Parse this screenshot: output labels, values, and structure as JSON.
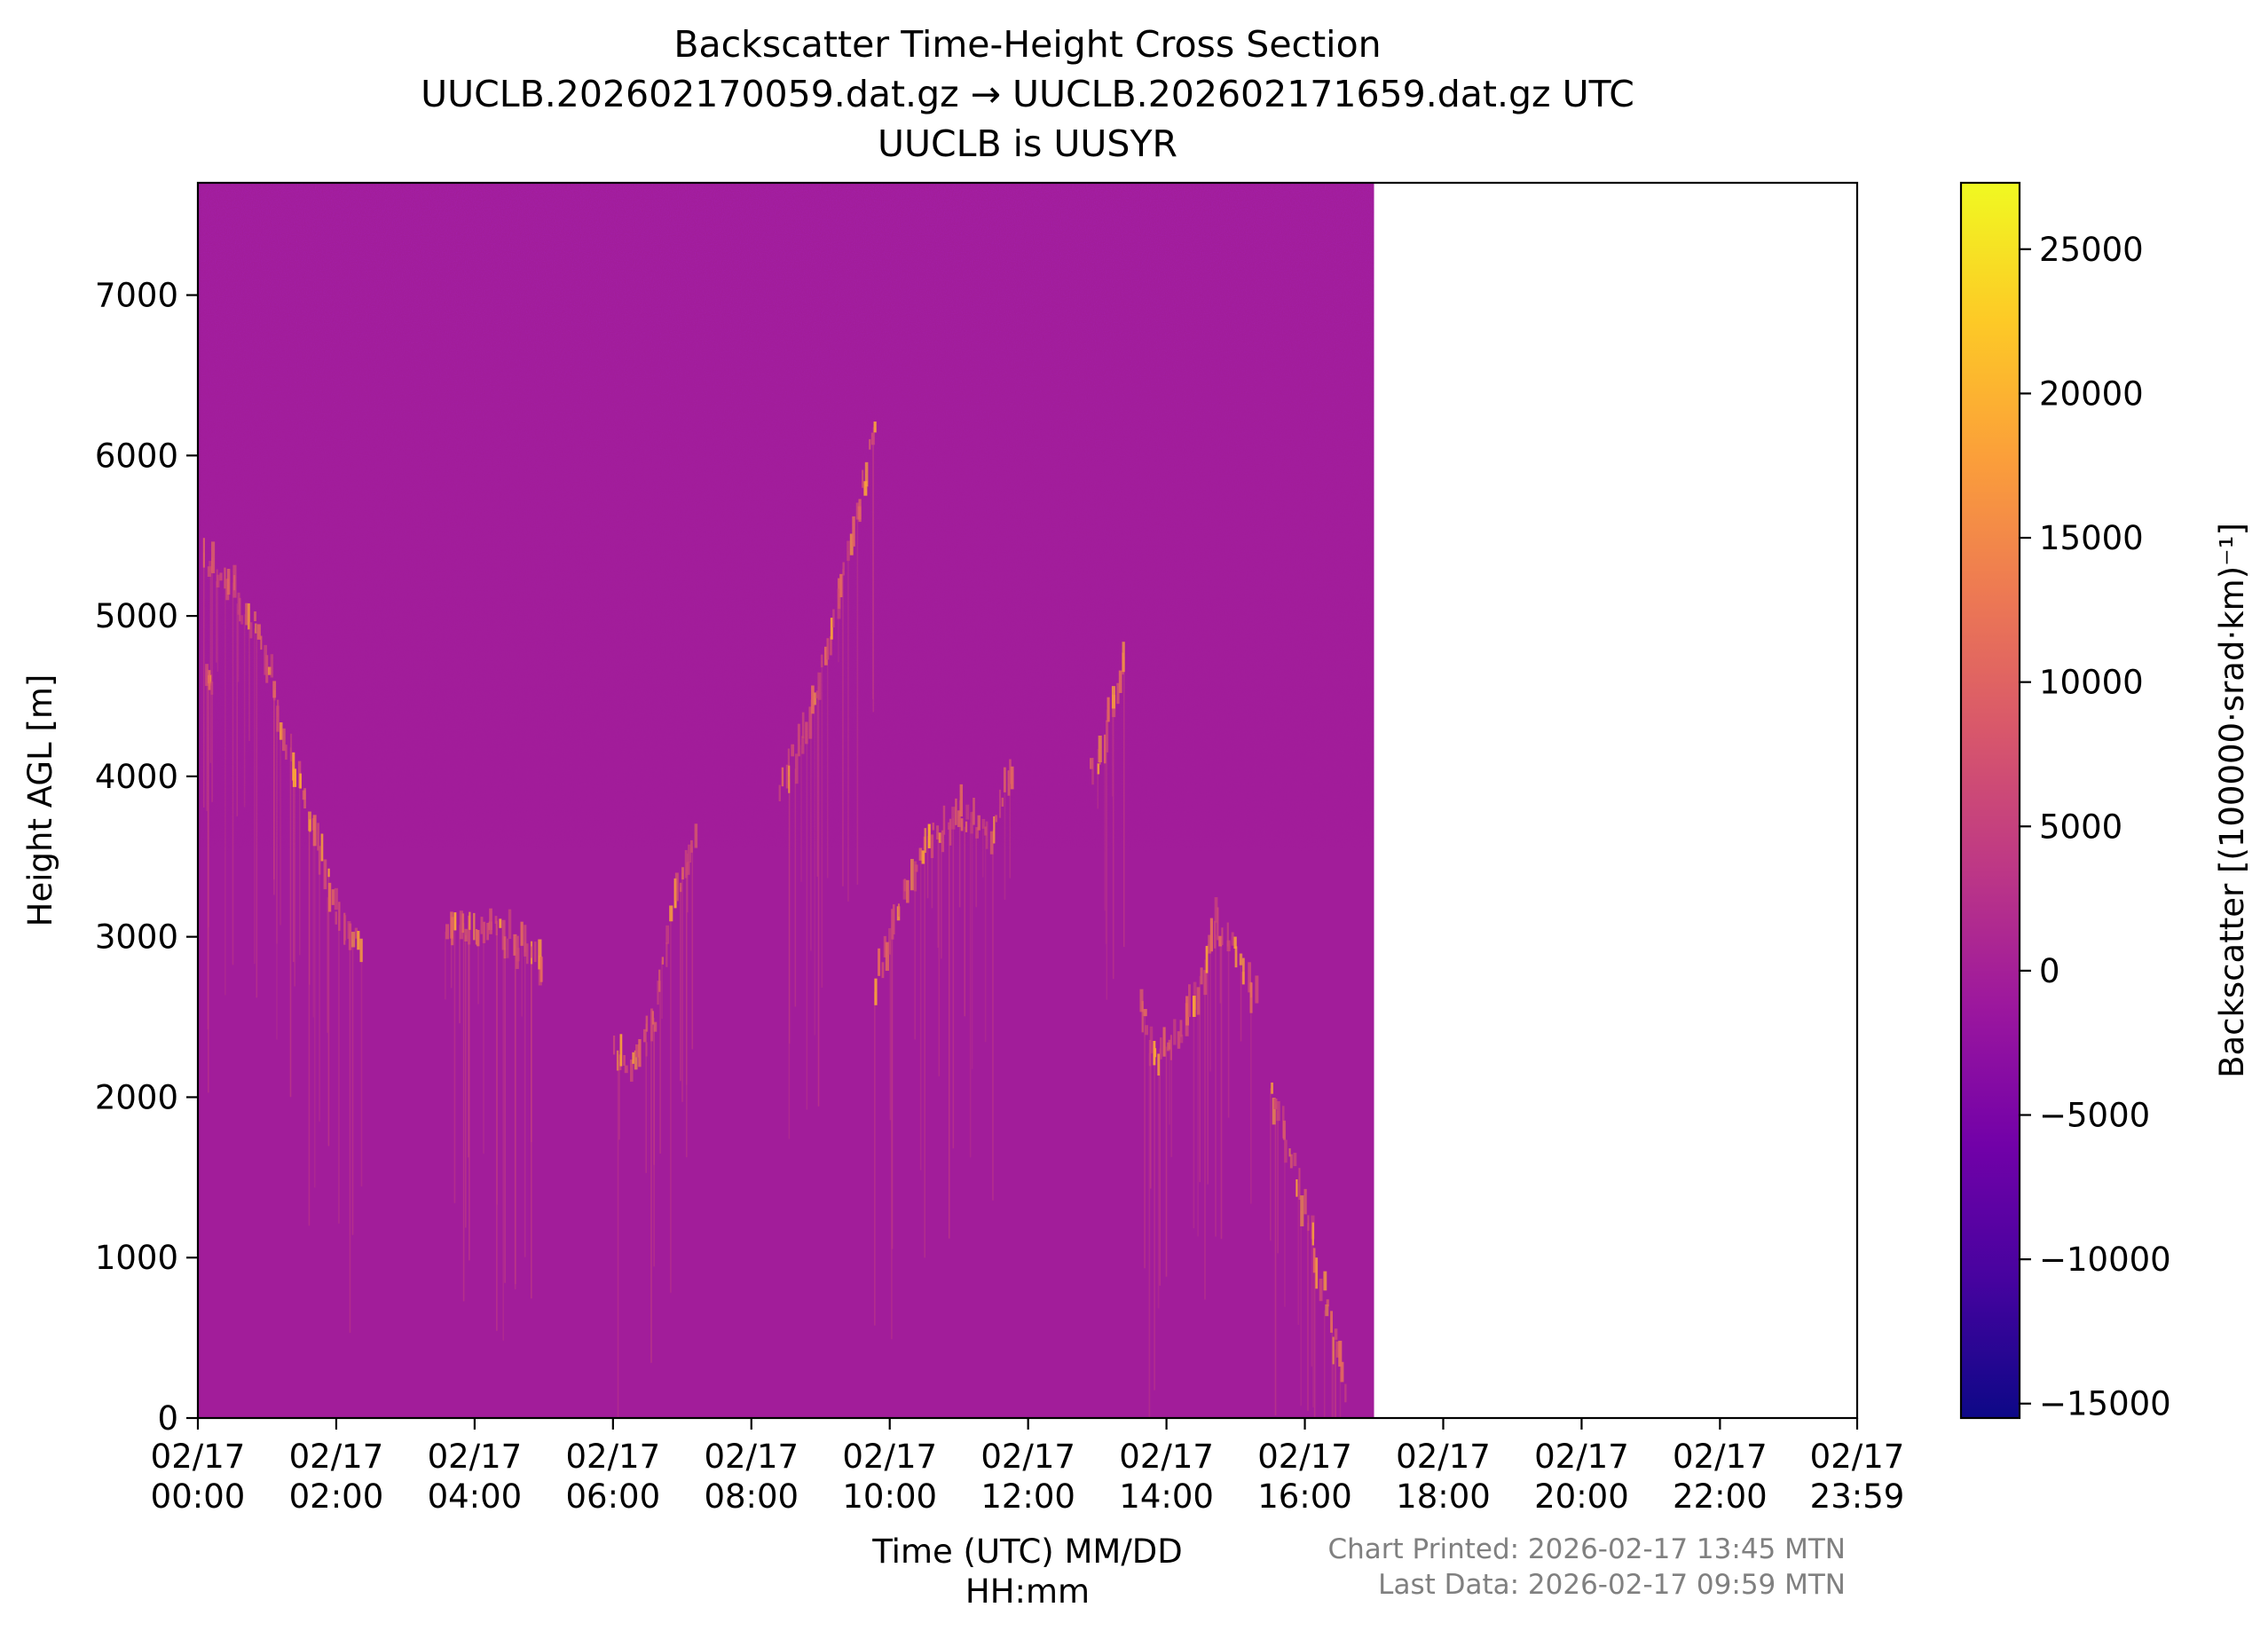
{
  "chart_data": {
    "type": "heatmap",
    "title_lines": [
      "Backscatter Time-Height Cross Section",
      "UUCLB.202602170059.dat.gz → UUCLB.202602171659.dat.gz UTC",
      "UUCLB is UUSYR"
    ],
    "xlabel_lines": [
      "Time (UTC) MM/DD",
      "HH:mm"
    ],
    "ylabel": "Height AGL [m]",
    "colorbar_label": "Backscatter [(100000·srad·km)⁻¹]",
    "x_range_hours": [
      0,
      23.983
    ],
    "data_end_hour": 17.0,
    "y_range_m": [
      0,
      7700
    ],
    "x_ticks": [
      {
        "hour": 0,
        "date": "02/17",
        "time": "00:00"
      },
      {
        "hour": 2,
        "date": "02/17",
        "time": "02:00"
      },
      {
        "hour": 4,
        "date": "02/17",
        "time": "04:00"
      },
      {
        "hour": 6,
        "date": "02/17",
        "time": "06:00"
      },
      {
        "hour": 8,
        "date": "02/17",
        "time": "08:00"
      },
      {
        "hour": 10,
        "date": "02/17",
        "time": "10:00"
      },
      {
        "hour": 12,
        "date": "02/17",
        "time": "12:00"
      },
      {
        "hour": 14,
        "date": "02/17",
        "time": "14:00"
      },
      {
        "hour": 16,
        "date": "02/17",
        "time": "16:00"
      },
      {
        "hour": 18,
        "date": "02/17",
        "time": "18:00"
      },
      {
        "hour": 20,
        "date": "02/17",
        "time": "20:00"
      },
      {
        "hour": 22,
        "date": "02/17",
        "time": "22:00"
      },
      {
        "hour": 23.983,
        "date": "02/17",
        "time": "23:59"
      }
    ],
    "y_ticks": [
      0,
      1000,
      2000,
      3000,
      4000,
      5000,
      6000,
      7000
    ],
    "colorbar_range": [
      -15500,
      27300
    ],
    "colorbar_ticks": [
      {
        "value": 25000,
        "label": "25000"
      },
      {
        "value": 20000,
        "label": "20000"
      },
      {
        "value": 15000,
        "label": "15000"
      },
      {
        "value": 10000,
        "label": "10000"
      },
      {
        "value": 5000,
        "label": "5000"
      },
      {
        "value": 0,
        "label": "0"
      },
      {
        "value": -5000,
        "label": "−5000"
      },
      {
        "value": -10000,
        "label": "−10000"
      },
      {
        "value": -15000,
        "label": "−15000"
      }
    ],
    "colormap": "plasma",
    "colormap_stops": [
      "#0d0887",
      "#46039f",
      "#7201a8",
      "#9c179e",
      "#bd3786",
      "#d8576b",
      "#ed7953",
      "#fb9f3a",
      "#fdca26",
      "#f0f921"
    ],
    "background_value_color": "#a21d9a",
    "cloud_traces": [
      {
        "name": "early-high-layer",
        "points": [
          [
            0.1,
            5350
          ],
          [
            0.4,
            5200
          ],
          [
            0.8,
            4950
          ],
          [
            1.0,
            4700
          ],
          [
            1.2,
            4300
          ],
          [
            1.5,
            3900
          ],
          [
            1.8,
            3500
          ],
          [
            2.0,
            3100
          ],
          [
            2.4,
            2900
          ]
        ]
      },
      {
        "name": "early-mid-layer",
        "points": [
          [
            0.1,
            4600
          ],
          [
            0.2,
            4500
          ]
        ]
      },
      {
        "name": "layer-0330-0500",
        "points": [
          [
            3.6,
            3100
          ],
          [
            4.0,
            3050
          ],
          [
            4.5,
            3000
          ],
          [
            4.8,
            2900
          ],
          [
            5.0,
            2800
          ]
        ]
      },
      {
        "name": "layer-0600-0700",
        "points": [
          [
            6.0,
            2300
          ],
          [
            6.3,
            2200
          ],
          [
            6.6,
            2500
          ],
          [
            6.9,
            3300
          ],
          [
            7.2,
            3700
          ]
        ]
      },
      {
        "name": "rising-layer-0830-1000",
        "points": [
          [
            8.4,
            3900
          ],
          [
            8.7,
            4200
          ],
          [
            9.0,
            4700
          ],
          [
            9.3,
            5200
          ],
          [
            9.6,
            5800
          ],
          [
            9.8,
            6200
          ]
        ]
      },
      {
        "name": "layer-1000-1130",
        "points": [
          [
            9.8,
            2700
          ],
          [
            10.1,
            3200
          ],
          [
            10.4,
            3500
          ],
          [
            11.0,
            3800
          ],
          [
            11.4,
            3600
          ],
          [
            11.8,
            4100
          ]
        ]
      },
      {
        "name": "layer-1300-1330",
        "points": [
          [
            12.9,
            4000
          ],
          [
            13.2,
            4400
          ],
          [
            13.4,
            4900
          ]
        ]
      },
      {
        "name": "layer-1330-1500",
        "points": [
          [
            13.6,
            2650
          ],
          [
            13.8,
            2200
          ],
          [
            14.1,
            2350
          ],
          [
            14.4,
            2600
          ],
          [
            14.7,
            3100
          ],
          [
            15.0,
            2900
          ],
          [
            15.3,
            2600
          ]
        ]
      },
      {
        "name": "falling-layer-1530-1645",
        "points": [
          [
            15.5,
            2000
          ],
          [
            15.8,
            1600
          ],
          [
            16.1,
            1100
          ],
          [
            16.4,
            500
          ],
          [
            16.6,
            150
          ]
        ]
      }
    ],
    "grid": false,
    "footer_lines": [
      "Chart Printed: 2026-02-17 13:45 MTN",
      "Last Data: 2026-02-17 09:59 MTN"
    ]
  }
}
